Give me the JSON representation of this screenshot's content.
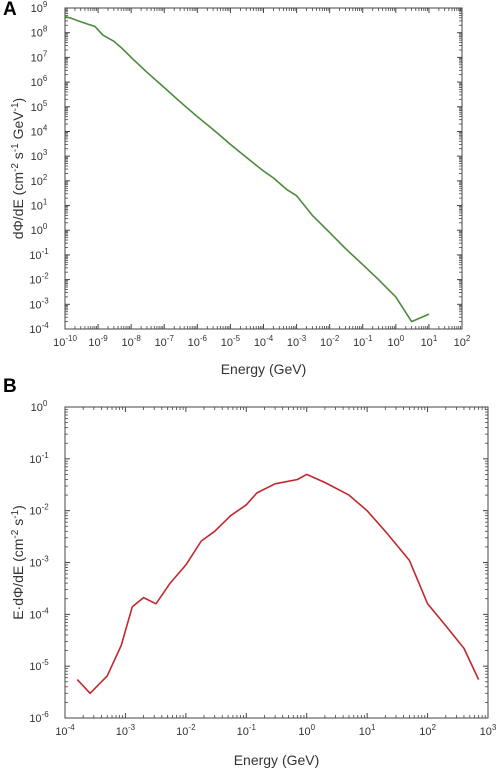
{
  "chart_data": [
    {
      "panel": "A",
      "type": "line",
      "xlabel": "Energy (GeV)",
      "ylabel_parts": [
        "dΦ/dE (cm",
        "-2",
        " s",
        "-1",
        " GeV",
        "-1",
        ")"
      ],
      "xscale": "log",
      "yscale": "log",
      "xlim": [
        1e-10,
        100
      ],
      "ylim": [
        0.0001,
        1000000000.0
      ],
      "xticks_exp": [
        -10,
        -9,
        -8,
        -7,
        -6,
        -5,
        -4,
        -3,
        -2,
        -1,
        0,
        1,
        2
      ],
      "yticks_exp": [
        -4,
        -3,
        -2,
        -1,
        0,
        1,
        2,
        3,
        4,
        5,
        6,
        7,
        8,
        9
      ],
      "grid": false,
      "color": "#4c8a3c",
      "x": [
        1e-10,
        1.4e-10,
        2.5e-10,
        5e-10,
        8e-10,
        1.4e-09,
        3e-09,
        5e-09,
        1e-08,
        3e-08,
        1e-07,
        3e-07,
        1e-06,
        3e-06,
        1e-05,
        3e-05,
        0.0001,
        0.0002,
        0.0005,
        0.001,
        0.003,
        0.01,
        0.03,
        0.1,
        0.3,
        1,
        3,
        10
      ],
      "y": [
        450000000.0,
        400000000.0,
        300000000.0,
        220000000.0,
        180000000.0,
        80000000.0,
        45000000.0,
        25000000.0,
        10000000.0,
        2500000.0,
        600000.0,
        160000.0,
        40000.0,
        12000.0,
        3000.0,
        900.0,
        250.0,
        130.0,
        45.0,
        25.0,
        4,
        0.8,
        0.18,
        0.04,
        0.01,
        0.002,
        0.0002,
        0.0004
      ]
    },
    {
      "panel": "B",
      "type": "line",
      "xlabel": "Energy (GeV)",
      "ylabel_parts": [
        "E·dΦ/dE (cm",
        "-2",
        " s",
        "-1",
        ")"
      ],
      "xscale": "log",
      "yscale": "log",
      "xlim": [
        0.0001,
        1000
      ],
      "ylim": [
        1e-06,
        1
      ],
      "xticks_exp": [
        -4,
        -3,
        -2,
        -1,
        0,
        1,
        2,
        3
      ],
      "yticks_exp": [
        -6,
        -5,
        -4,
        -3,
        -2,
        -1,
        0
      ],
      "grid": false,
      "color": "#c0282d",
      "x": [
        0.00016,
        0.00026,
        0.0005,
        0.00085,
        0.0013,
        0.002,
        0.0032,
        0.0055,
        0.01,
        0.018,
        0.03,
        0.055,
        0.1,
        0.15,
        0.3,
        0.7,
        1,
        2,
        5,
        10,
        20,
        50,
        100,
        200,
        400,
        700
      ],
      "y": [
        5.5e-06,
        3e-06,
        6.5e-06,
        2.5e-05,
        0.00014,
        0.00021,
        0.00016,
        0.0004,
        0.0009,
        0.0026,
        0.004,
        0.008,
        0.013,
        0.022,
        0.033,
        0.04,
        0.05,
        0.035,
        0.02,
        0.01,
        0.004,
        0.0011,
        0.00016,
        6e-05,
        2.2e-05,
        5.5e-06
      ]
    }
  ]
}
